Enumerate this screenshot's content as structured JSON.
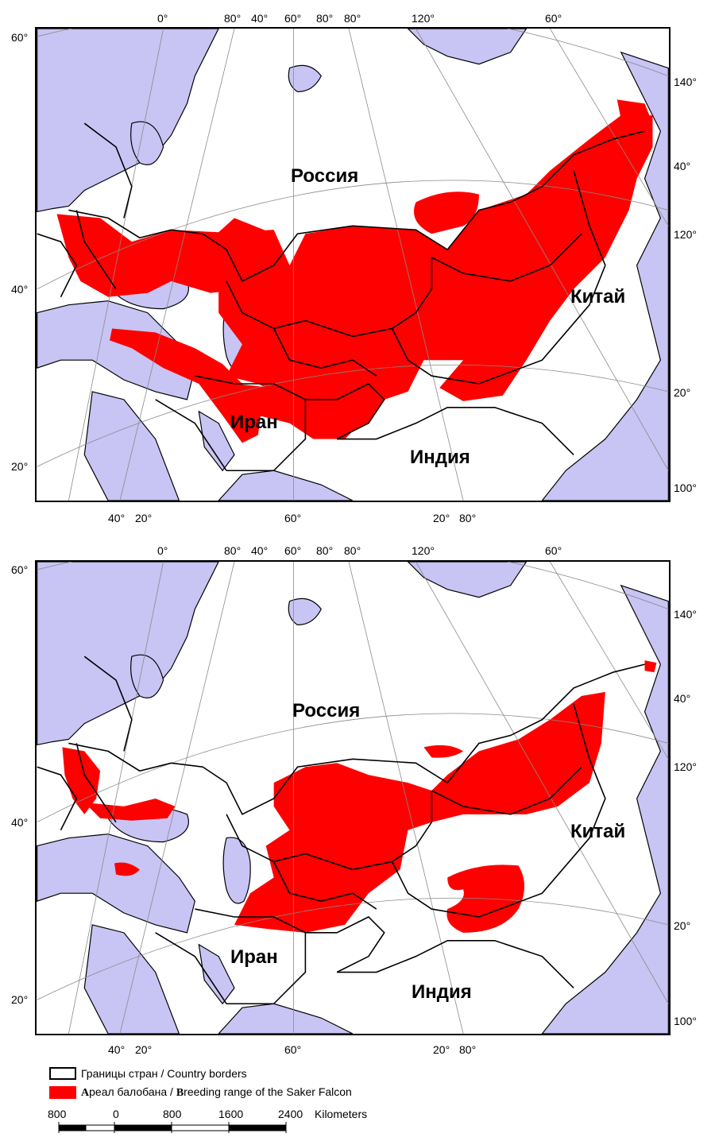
{
  "colors": {
    "sea": "#c8c4f4",
    "land": "#ffffff",
    "range": "#ff0000",
    "border": "#000000",
    "graticule": "#8a8a8a"
  },
  "maps": [
    {
      "id": "top",
      "countries": [
        "Россия",
        "Китай",
        "Иран",
        "Индия"
      ],
      "top_labels": [
        "0°",
        "80°",
        "40°",
        "60°",
        "80°",
        "80°",
        "120°",
        "60°"
      ],
      "left_labels": [
        "60°",
        "40°",
        "20°"
      ],
      "right_labels": [
        "140°",
        "40°",
        "120°",
        "20°",
        "100°"
      ],
      "bottom_labels": [
        "40°",
        "20°",
        "60°",
        "20°",
        "80°"
      ]
    },
    {
      "id": "bottom",
      "countries": [
        "Россия",
        "Китай",
        "Иран",
        "Индия"
      ],
      "top_labels": [
        "0°",
        "80°",
        "40°",
        "60°",
        "80°",
        "80°",
        "120°",
        "60°"
      ],
      "left_labels": [
        "60°",
        "40°",
        "20°"
      ],
      "right_labels": [
        "140°",
        "40°",
        "120°",
        "20°",
        "100°"
      ],
      "bottom_labels": [
        "40°",
        "20°",
        "60°",
        "20°",
        "80°"
      ]
    }
  ],
  "legend": {
    "borders": "Границы стран / Country borders",
    "range_first_ru": "А",
    "range_rest_ru": "реал балобана / ",
    "range_first_en": "B",
    "range_rest_en": "reeding range of the Saker Falcon"
  },
  "scale": {
    "ticks": [
      "800",
      "0",
      "800",
      "1600",
      "2400"
    ],
    "unit": "Kilometers"
  }
}
